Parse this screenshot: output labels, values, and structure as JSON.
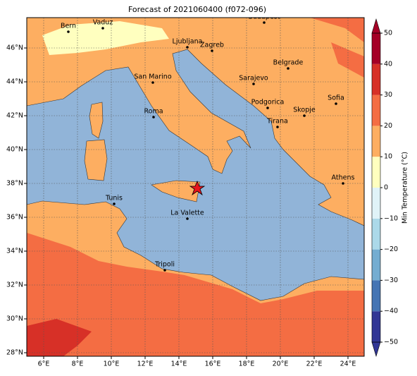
{
  "title": "Forecast of 2021060400 (f072-096)",
  "map": {
    "lon_ticks": [
      {
        "value": 6,
        "label": "6°E"
      },
      {
        "value": 8,
        "label": "8°E"
      },
      {
        "value": 10,
        "label": "10°E"
      },
      {
        "value": 12,
        "label": "12°E"
      },
      {
        "value": 14,
        "label": "14°E"
      },
      {
        "value": 16,
        "label": "16°E"
      },
      {
        "value": 18,
        "label": "18°E"
      },
      {
        "value": 20,
        "label": "20°E"
      },
      {
        "value": 22,
        "label": "22°E"
      },
      {
        "value": 24,
        "label": "24°E"
      }
    ],
    "lat_ticks": [
      {
        "value": 28,
        "label": "28°N"
      },
      {
        "value": 30,
        "label": "30°N"
      },
      {
        "value": 32,
        "label": "32°N"
      },
      {
        "value": 34,
        "label": "34°N"
      },
      {
        "value": 36,
        "label": "36°N"
      },
      {
        "value": 38,
        "label": "38°N"
      },
      {
        "value": 40,
        "label": "40°N"
      },
      {
        "value": 42,
        "label": "42°N"
      },
      {
        "value": 44,
        "label": "44°N"
      },
      {
        "value": 46,
        "label": "46°N"
      }
    ],
    "cities": [
      "Bern",
      "Vaduz",
      "Budapest",
      "Ljubljana",
      "Zagreb",
      "Belgrade",
      "San Marino",
      "Sarajevo",
      "Sofia",
      "Podgorica",
      "Skopje",
      "Roma",
      "Tirana",
      "Athens",
      "Tunis",
      "La Valette",
      "Tripoli"
    ]
  },
  "colorbar": {
    "label": "Min Temperature (°C)",
    "ticks": [
      {
        "value": -50,
        "label": "−50"
      },
      {
        "value": -40,
        "label": "−40"
      },
      {
        "value": -30,
        "label": "−30"
      },
      {
        "value": -20,
        "label": "−20"
      },
      {
        "value": -10,
        "label": "−10"
      },
      0,
      10,
      20,
      30,
      40,
      50
    ],
    "colors": [
      "#313695",
      "#4575b4",
      "#74add1",
      "#abd9e9",
      "#e0f3f8",
      "#ffffbf",
      "#fdae61",
      "#f46d43",
      "#d73027",
      "#a50026"
    ]
  }
}
